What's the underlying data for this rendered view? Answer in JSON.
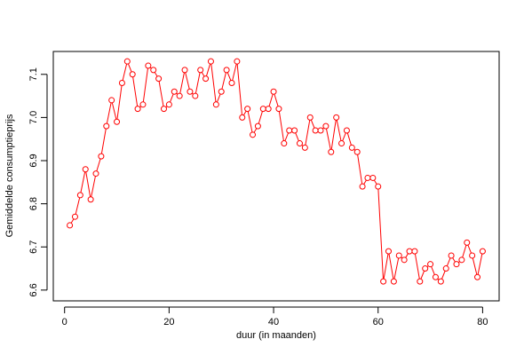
{
  "chart_data": {
    "type": "line",
    "xlabel": "duur (in maanden)",
    "ylabel": "Gemiddelde consumptieprijs",
    "x": [
      1,
      2,
      3,
      4,
      5,
      6,
      7,
      8,
      9,
      10,
      11,
      12,
      13,
      14,
      15,
      16,
      17,
      18,
      19,
      20,
      21,
      22,
      23,
      24,
      25,
      26,
      27,
      28,
      29,
      30,
      31,
      32,
      33,
      34,
      35,
      36,
      37,
      38,
      39,
      40,
      41,
      42,
      43,
      44,
      45,
      46,
      47,
      48,
      49,
      50,
      51,
      52,
      53,
      54,
      55,
      56,
      57,
      58,
      59,
      60,
      61,
      62,
      63,
      64,
      65,
      66,
      67,
      68,
      69,
      70,
      71,
      72,
      73,
      74,
      75,
      76,
      77,
      78,
      79,
      80
    ],
    "series": [
      {
        "name": "Gemiddelde consumptieprijs",
        "color": "#ff0000",
        "values": [
          6.75,
          6.77,
          6.82,
          6.88,
          6.81,
          6.87,
          6.91,
          6.98,
          7.04,
          6.99,
          7.08,
          7.13,
          7.1,
          7.02,
          7.03,
          7.12,
          7.11,
          7.09,
          7.02,
          7.03,
          7.06,
          7.05,
          7.11,
          7.06,
          7.05,
          7.11,
          7.09,
          7.13,
          7.03,
          7.06,
          7.11,
          7.08,
          7.13,
          7.0,
          7.02,
          6.96,
          6.98,
          7.02,
          7.02,
          7.06,
          7.02,
          6.94,
          6.97,
          6.97,
          6.94,
          6.93,
          7.0,
          6.97,
          6.97,
          6.98,
          6.92,
          7.0,
          6.94,
          6.97,
          6.93,
          6.92,
          6.84,
          6.86,
          6.86,
          6.84,
          6.62,
          6.69,
          6.62,
          6.68,
          6.67,
          6.69,
          6.69,
          6.62,
          6.65,
          6.66,
          6.63,
          6.62,
          6.65,
          6.68,
          6.66,
          6.67,
          6.71,
          6.68,
          6.63,
          6.69
        ]
      }
    ],
    "xlim": [
      -2.16,
      83.16
    ],
    "xticks": [
      0,
      20,
      40,
      60,
      80
    ],
    "ylim": [
      6.575,
      7.153
    ],
    "yticks": [
      6.6,
      6.7,
      6.8,
      6.9,
      {
        "value": 7.0,
        "label": "7.0"
      },
      7.1
    ]
  }
}
